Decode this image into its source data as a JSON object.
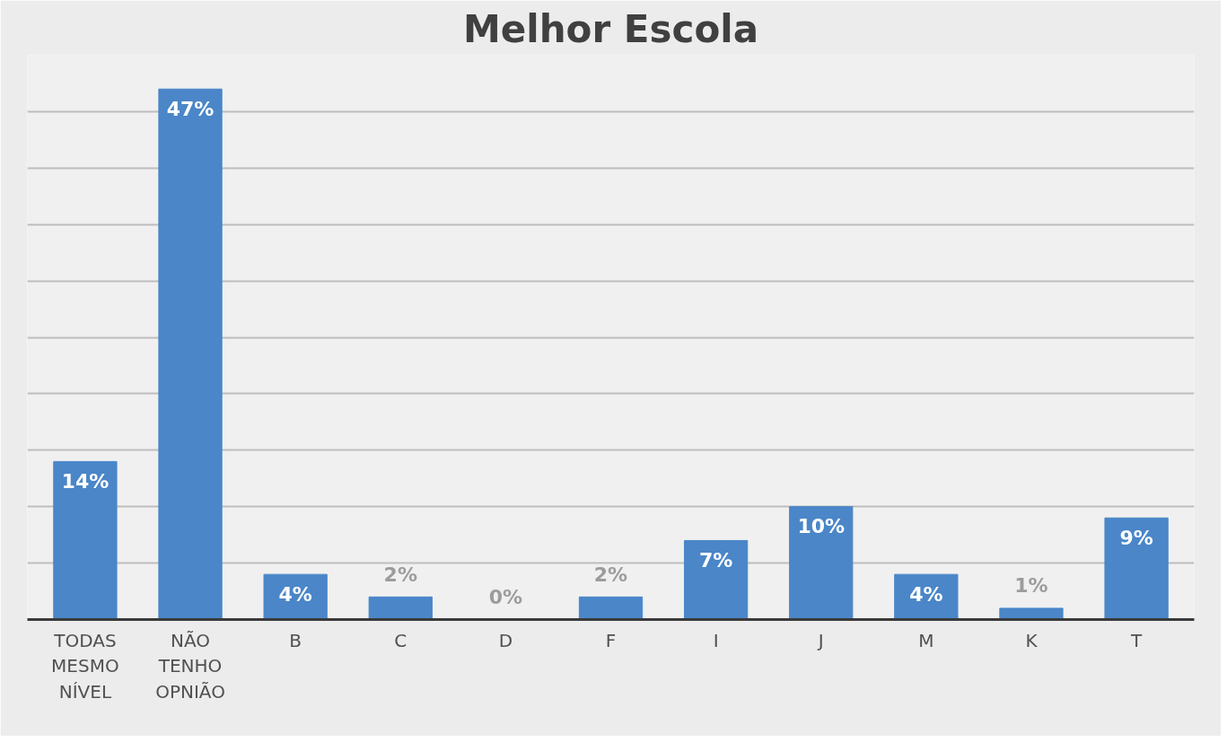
{
  "chart_data": {
    "type": "bar",
    "title": "Melhor Escola",
    "categories": [
      "TODAS MESMO NÍVEL",
      "NÃO TENHO OPNIÃO",
      "B",
      "C",
      "D",
      "F",
      "I",
      "J",
      "M",
      "K",
      "T"
    ],
    "values": [
      14,
      47,
      4,
      2,
      0,
      2,
      7,
      10,
      4,
      1,
      9
    ],
    "value_labels": [
      "14%",
      "47%",
      "4%",
      "2%",
      "0%",
      "2%",
      "7%",
      "10%",
      "4%",
      "1%",
      "9%"
    ],
    "color": "#4a86c8",
    "ylim": [
      0,
      50
    ],
    "yticks": [
      {
        "value": 0,
        "label": null
      },
      {
        "value": 5,
        "label": null
      },
      {
        "value": 10,
        "label": null
      },
      {
        "value": 15,
        "label": null
      },
      {
        "value": 20,
        "label": null
      },
      {
        "value": 25,
        "label": null
      },
      {
        "value": 30,
        "label": null
      },
      {
        "value": 35,
        "label": null
      },
      {
        "value": 40,
        "label": null
      },
      {
        "value": 45,
        "label": null
      },
      {
        "value": 50,
        "label": null
      }
    ],
    "grid": "y",
    "tick_labels": "x"
  }
}
